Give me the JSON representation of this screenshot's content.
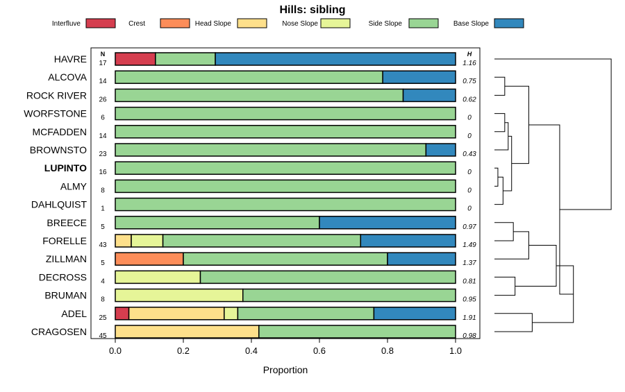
{
  "chart_data": {
    "type": "bar",
    "orientation": "horizontal-stacked",
    "title": "Hills: sibling",
    "xlabel": "Proportion",
    "ylabel": "",
    "xlim": [
      0,
      1
    ],
    "x_ticks": [
      "0.0",
      "0.2",
      "0.4",
      "0.6",
      "0.8",
      "1.0"
    ],
    "n_header": "N",
    "h_header": "H",
    "legend": [
      {
        "name": "Interfluve",
        "color": "#D53E4F"
      },
      {
        "name": "Crest",
        "color": "#FC8D59"
      },
      {
        "name": "Head Slope",
        "color": "#FEE08B"
      },
      {
        "name": "Nose Slope",
        "color": "#E6F598"
      },
      {
        "name": "Side Slope",
        "color": "#99D594"
      },
      {
        "name": "Base Slope",
        "color": "#3288BD"
      }
    ],
    "categories": [
      "HAVRE",
      "ALCOVA",
      "ROCK RIVER",
      "WORFSTONE",
      "MCFADDEN",
      "BROWNSTO",
      "LUPINTO",
      "ALMY",
      "DAHLQUIST",
      "BREECE",
      "FORELLE",
      "ZILLMAN",
      "DECROSS",
      "BRUMAN",
      "ADEL",
      "CRAGOSEN"
    ],
    "highlight": "LUPINTO",
    "n": [
      "17",
      "14",
      "26",
      "6",
      "14",
      "23",
      "16",
      "8",
      "1",
      "5",
      "43",
      "5",
      "4",
      "8",
      "25",
      "45"
    ],
    "h": [
      "1.16",
      "0.75",
      "0.62",
      "0",
      "0",
      "0.43",
      "0",
      "0",
      "0",
      "0.97",
      "1.49",
      "1.37",
      "0.81",
      "0.95",
      "1.91",
      "0.98"
    ],
    "series": [
      {
        "name": "Interfluve",
        "values": [
          0.118,
          0,
          0,
          0,
          0,
          0,
          0,
          0,
          0,
          0,
          0,
          0,
          0,
          0,
          0.04,
          0
        ]
      },
      {
        "name": "Crest",
        "values": [
          0,
          0,
          0,
          0,
          0,
          0,
          0,
          0,
          0,
          0,
          0,
          0.2,
          0,
          0,
          0,
          0
        ]
      },
      {
        "name": "Head Slope",
        "values": [
          0,
          0,
          0,
          0,
          0,
          0,
          0,
          0,
          0,
          0,
          0.047,
          0,
          0,
          0,
          0.28,
          0.422
        ]
      },
      {
        "name": "Nose Slope",
        "values": [
          0,
          0,
          0,
          0,
          0,
          0,
          0,
          0,
          0,
          0,
          0.093,
          0,
          0.25,
          0.375,
          0.04,
          0
        ]
      },
      {
        "name": "Side Slope",
        "values": [
          0.176,
          0.786,
          0.846,
          1,
          1,
          0.913,
          1,
          1,
          1,
          0.6,
          0.581,
          0.6,
          0.75,
          0.625,
          0.4,
          0.578
        ]
      },
      {
        "name": "Base Slope",
        "values": [
          0.706,
          0.214,
          0.154,
          0,
          0,
          0.087,
          0,
          0,
          0,
          0.4,
          0.279,
          0.2,
          0,
          0,
          0.24,
          0
        ]
      }
    ],
    "dendrogram": {
      "leaves": [
        "HAVRE",
        "ALCOVA",
        "ROCK RIVER",
        "WORFSTONE",
        "MCFADDEN",
        "BROWNSTO",
        "LUPINTO",
        "ALMY",
        "DAHLQUIST",
        "BREECE",
        "FORELLE",
        "ZILLMAN",
        "DECROSS",
        "BRUMAN",
        "ADEL",
        "CRAGOSEN"
      ],
      "merges": [
        [
          -7,
          -8,
          0.02
        ],
        [
          1,
          -9,
          0.05
        ],
        [
          -4,
          -5,
          0.06
        ],
        [
          3,
          -6,
          0.08
        ],
        [
          4,
          2,
          0.1
        ],
        [
          -2,
          -3,
          0.06
        ],
        [
          6,
          5,
          0.2
        ],
        [
          -10,
          -11,
          0.11
        ],
        [
          8,
          -12,
          0.2
        ],
        [
          -13,
          -14,
          0.12
        ],
        [
          9,
          10,
          0.36
        ],
        [
          -15,
          -16,
          0.22
        ],
        [
          11,
          12,
          0.46
        ],
        [
          7,
          13,
          0.38
        ],
        [
          -1,
          14,
          0.68
        ]
      ],
      "max_height": 0.72
    }
  }
}
